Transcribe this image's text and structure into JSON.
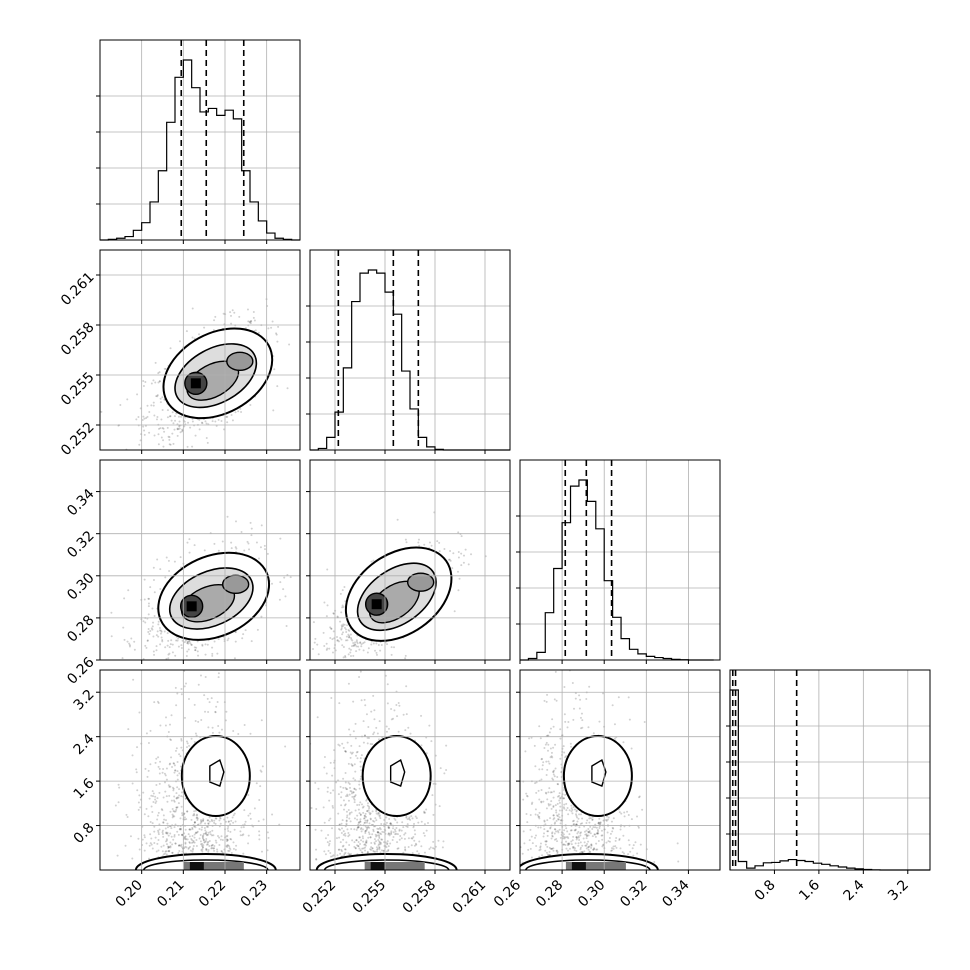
{
  "chart_data": {
    "type": "corner",
    "params": [
      {
        "range": [
          0.19,
          0.238
        ],
        "ticks": [
          0.2,
          0.21,
          0.22,
          0.23
        ],
        "tick_labels": [
          "0.20",
          "0.21",
          "0.22",
          "0.23"
        ],
        "quantiles": [
          0.2095,
          0.2155,
          0.2245
        ],
        "hist_bins": [
          0.19,
          0.192,
          0.194,
          0.196,
          0.198,
          0.2,
          0.202,
          0.204,
          0.206,
          0.208,
          0.21,
          0.212,
          0.214,
          0.216,
          0.218,
          0.22,
          0.222,
          0.224,
          0.226,
          0.228,
          0.23,
          0.232,
          0.234,
          0.236,
          0.238
        ],
        "hist_counts": [
          0,
          2,
          5,
          10,
          28,
          50,
          110,
          200,
          340,
          470,
          520,
          440,
          370,
          380,
          360,
          375,
          350,
          200,
          110,
          55,
          20,
          5,
          2,
          0
        ]
      },
      {
        "range": [
          0.2505,
          0.2625
        ],
        "ticks": [
          0.252,
          0.255,
          0.258,
          0.261
        ],
        "tick_labels": [
          "0.252",
          "0.255",
          "0.258",
          "0.261"
        ],
        "quantiles": [
          0.2522,
          0.2555,
          0.257
        ],
        "hist_bins": [
          0.2505,
          0.251,
          0.2515,
          0.252,
          0.2525,
          0.253,
          0.2535,
          0.254,
          0.2545,
          0.255,
          0.2555,
          0.256,
          0.2565,
          0.257,
          0.2575,
          0.258,
          0.2585,
          0.259,
          0.2595,
          0.26,
          0.2605,
          0.261,
          0.2615,
          0.262,
          0.2625
        ],
        "hist_counts": [
          0,
          5,
          40,
          120,
          260,
          470,
          560,
          570,
          560,
          500,
          430,
          250,
          130,
          40,
          10,
          2,
          0,
          0,
          0,
          0,
          0,
          0,
          0,
          0
        ]
      },
      {
        "range": [
          0.26,
          0.355
        ],
        "ticks": [
          0.26,
          0.28,
          0.3,
          0.32,
          0.34
        ],
        "tick_labels": [
          "0.26",
          "0.28",
          "0.30",
          "0.32",
          "0.34"
        ],
        "quantiles": [
          0.2815,
          0.2915,
          0.3035
        ],
        "hist_bins": [
          0.26,
          0.264,
          0.268,
          0.272,
          0.276,
          0.28,
          0.284,
          0.288,
          0.292,
          0.296,
          0.3,
          0.304,
          0.308,
          0.312,
          0.316,
          0.32,
          0.324,
          0.328,
          0.332,
          0.336,
          0.34,
          0.344,
          0.348,
          0.352
        ],
        "hist_counts": [
          0,
          5,
          25,
          155,
          300,
          450,
          570,
          590,
          520,
          430,
          260,
          140,
          70,
          35,
          20,
          12,
          8,
          5,
          2,
          1,
          0,
          0,
          0
        ]
      },
      {
        "range": [
          0.0,
          3.6
        ],
        "ticks": [
          0.8,
          1.6,
          2.4,
          3.2
        ],
        "tick_labels": [
          "0.8",
          "1.6",
          "2.4",
          "3.2"
        ],
        "quantiles": [
          0.05,
          0.1,
          1.2
        ],
        "hist_bins": [
          0.0,
          0.15,
          0.3,
          0.45,
          0.6,
          0.75,
          0.9,
          1.05,
          1.2,
          1.35,
          1.5,
          1.65,
          1.8,
          1.95,
          2.1,
          2.25,
          2.4,
          2.55,
          2.7,
          2.85,
          3.0,
          3.15,
          3.3,
          3.45,
          3.6
        ],
        "hist_counts": [
          950,
          45,
          10,
          22,
          38,
          40,
          48,
          55,
          50,
          45,
          36,
          30,
          22,
          16,
          10,
          6,
          3,
          1,
          0,
          0,
          0,
          0,
          0,
          0
        ]
      }
    ],
    "pairs": [
      {
        "row": 1,
        "col": 0,
        "corr": 0.55,
        "mode": [
          0.213,
          0.2545
        ]
      },
      {
        "row": 2,
        "col": 0,
        "corr": 0.45,
        "mode": [
          0.212,
          0.2855
        ]
      },
      {
        "row": 2,
        "col": 1,
        "corr": 0.7,
        "mode": [
          0.2545,
          0.2865
        ]
      },
      {
        "row": 3,
        "col": 0,
        "corr": 0.0,
        "mode": [
          0.213,
          0.05
        ]
      },
      {
        "row": 3,
        "col": 1,
        "corr": 0.0,
        "mode": [
          0.2545,
          0.05
        ]
      },
      {
        "row": 3,
        "col": 2,
        "corr": 0.0,
        "mode": [
          0.2875,
          0.05
        ]
      }
    ],
    "colors": {
      "line": "#000000",
      "grid": "#b0b0b0",
      "points": "#000000"
    },
    "grid": true
  }
}
